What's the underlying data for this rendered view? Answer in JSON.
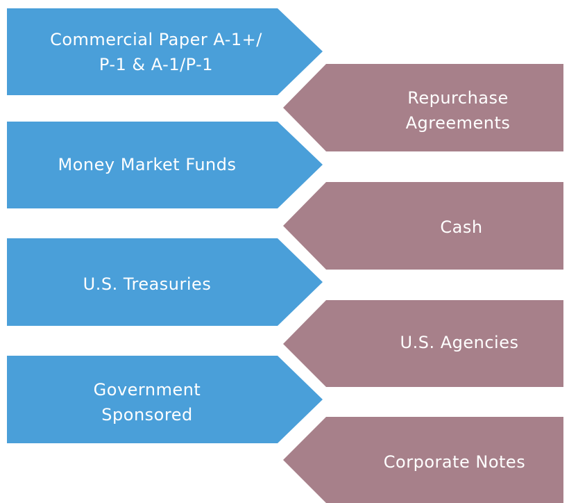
{
  "left_items": [
    {
      "lines": [
        "Commercial Paper A-1+/",
        "P-1 & A-1/P-1"
      ]
    },
    {
      "lines": [
        "Money Market Funds"
      ]
    },
    {
      "lines": [
        "U.S. Treasuries"
      ]
    },
    {
      "lines": [
        "Government",
        "Sponsored"
      ]
    }
  ],
  "right_items": [
    {
      "lines": [
        "Repurchase",
        "Agreements"
      ]
    },
    {
      "lines": [
        "Cash"
      ]
    },
    {
      "lines": [
        "U.S. Agencies"
      ]
    },
    {
      "lines": [
        "Corporate Notes"
      ]
    }
  ]
}
